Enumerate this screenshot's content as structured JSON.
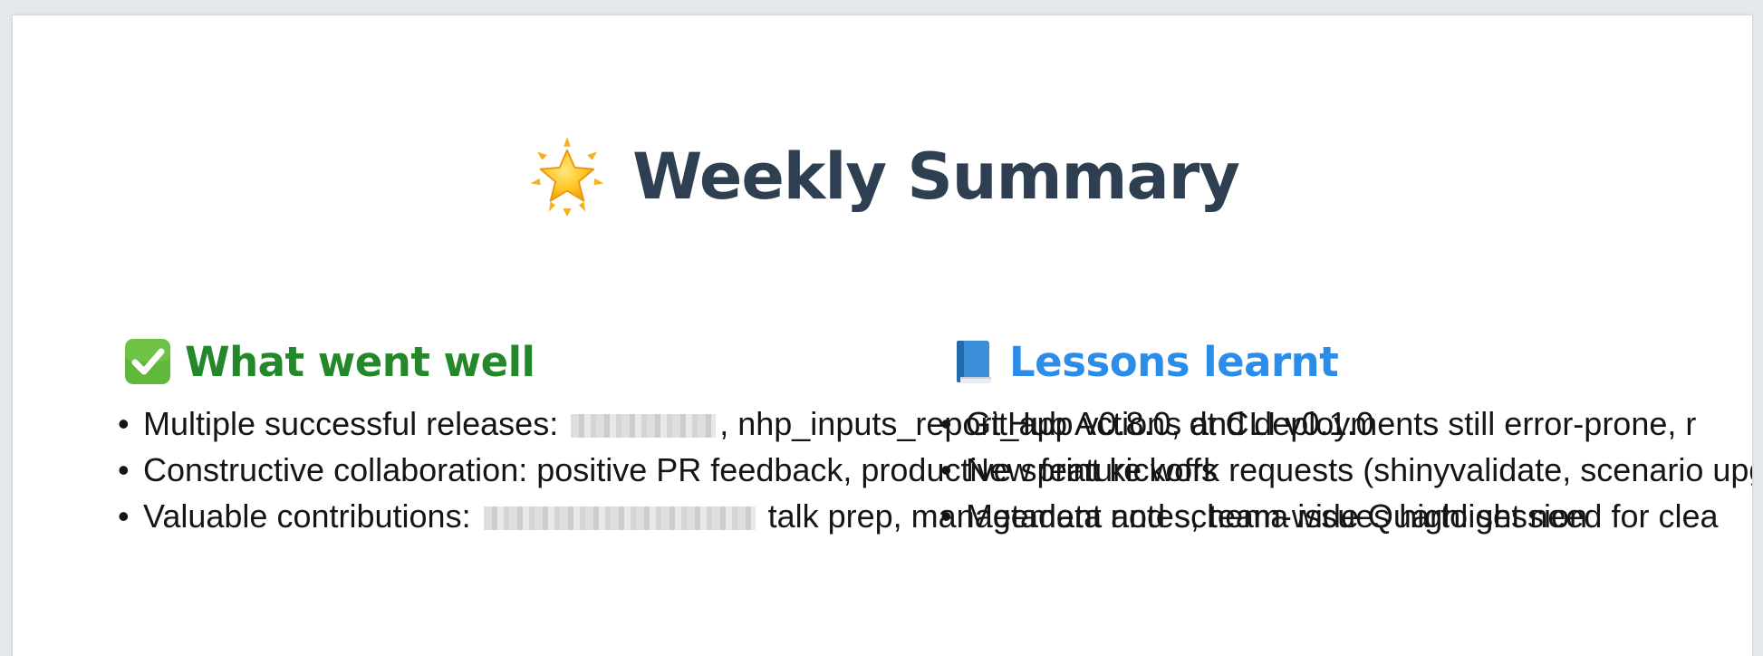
{
  "slide": {
    "title": "Weekly Summary",
    "title_icon": "glowing-star-icon",
    "sections": {
      "well": {
        "heading": "What went well",
        "icon": "check-mark-button-icon",
        "color": "#24882a",
        "items": [
          {
            "prefix": "Multiple successful releases: ",
            "suffix": ", nhp_inputs_report_app v0.8.0, dt CLI v0.1.0"
          },
          {
            "prefix": "Constructive collaboration: positive PR feedback, productive sprint kickoffs",
            "suffix": ""
          },
          {
            "prefix": "Valuable contributions: ",
            "suffix": " talk prep, management notes, team-wide Quarto session"
          }
        ]
      },
      "lessons": {
        "heading": "Lessons learnt",
        "icon": "blue-book-icon",
        "color": "#2b8de8",
        "items": [
          {
            "text": "GitHub Actions and deployments still error-prone, r"
          },
          {
            "text": "New feature work requests (shinyvalidate, scenario upgr"
          },
          {
            "text": "Metadata and schema issues highlight need for clea"
          }
        ]
      }
    }
  }
}
